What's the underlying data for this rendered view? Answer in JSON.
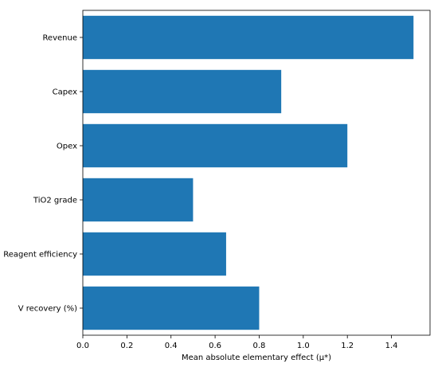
{
  "chart_data": {
    "type": "bar",
    "orientation": "horizontal",
    "categories": [
      "Revenue",
      "Capex",
      "Opex",
      "TiO2 grade",
      "Reagent efficiency",
      "V recovery (%)"
    ],
    "values": [
      1.5,
      0.9,
      1.2,
      0.5,
      0.65,
      0.8
    ],
    "xlabel": "Mean absolute elementary effect (μ*)",
    "ylabel": "",
    "xlim": [
      0,
      1.575
    ],
    "xticks": [
      0.0,
      0.2,
      0.4,
      0.6,
      0.8,
      1.0,
      1.2,
      1.4
    ],
    "xtick_labels": [
      "0.0",
      "0.2",
      "0.4",
      "0.6",
      "0.8",
      "1.0",
      "1.2",
      "1.4"
    ],
    "grid": false,
    "bar_color": "#1f77b4"
  }
}
